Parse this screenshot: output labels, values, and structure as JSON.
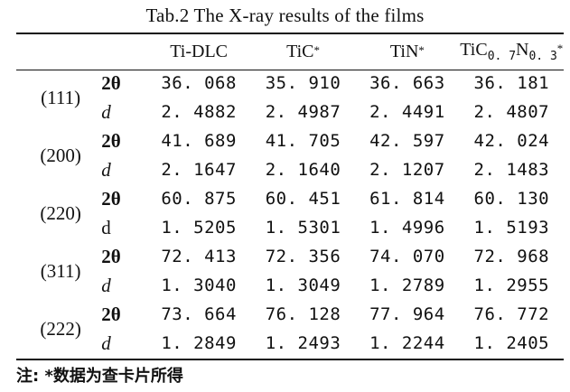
{
  "caption": "Tab.2   The X-ray results of the films",
  "columns": [
    "",
    "",
    "Ti-DLC",
    "TiC",
    "TiN",
    "TiC0.7N0.3"
  ],
  "header": {
    "c1": "Ti-DLC",
    "c2_main": "TiC",
    "c2_mark": "*",
    "c3_main": "TiN",
    "c3_mark": "*",
    "c4_main": "TiC",
    "c4_sub1": "0. 7",
    "c4_mid": "N",
    "c4_sub2": "0. 3",
    "c4_mark": "*"
  },
  "rows": [
    {
      "group": "(111)",
      "theta_label": "2θ",
      "theta_values": [
        "36. 068",
        "35. 910",
        "36. 663",
        "36. 181"
      ],
      "d_label": "d",
      "d_values": [
        "2. 4882",
        "2. 4987",
        "2. 4491",
        "2. 4807"
      ]
    },
    {
      "group": "(200)",
      "theta_label": "2θ",
      "theta_values": [
        "41. 689",
        "41. 705",
        "42. 597",
        "42. 024"
      ],
      "d_label": "d",
      "d_values": [
        "2. 1647",
        "2. 1640",
        "2. 1207",
        "2. 1483"
      ]
    },
    {
      "group": "(220)",
      "theta_label": "2θ",
      "theta_values": [
        "60. 875",
        "60. 451",
        "61. 814",
        "60. 130"
      ],
      "d_label": "d",
      "d_values": [
        "1. 5205",
        "1. 5301",
        "1. 4996",
        "1. 5193"
      ]
    },
    {
      "group": "(311)",
      "theta_label": "2θ",
      "theta_values": [
        "72. 413",
        "72. 356",
        "74. 070",
        "72. 968"
      ],
      "d_label": "d",
      "d_values": [
        "1. 3040",
        "1. 3049",
        "1. 2789",
        "1. 2955"
      ]
    },
    {
      "group": "(222)",
      "theta_label": "2θ",
      "theta_values": [
        "73. 664",
        "76. 128",
        "77. 964",
        "76. 772"
      ],
      "d_label": "d",
      "d_values": [
        "1. 2849",
        "1. 2493",
        "1. 2244",
        "1. 2405"
      ]
    }
  ],
  "note": "注: *数据为查卡片所得"
}
